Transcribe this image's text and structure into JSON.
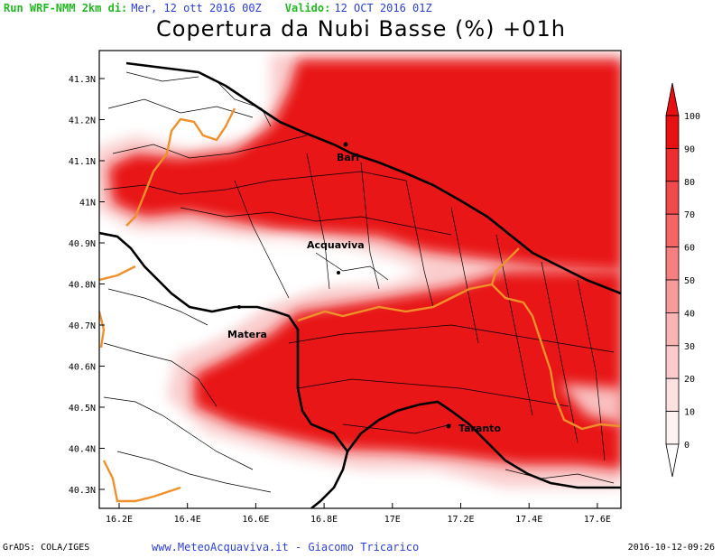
{
  "header": {
    "run_label": "Run WRF-NMM 2km di:",
    "run_value": "Mer, 12 ott 2016 00Z",
    "valid_label": "Valido:",
    "valid_value": "12 OCT 2016 01Z"
  },
  "title": "Copertura da Nubi Basse (%) +01h",
  "axes": {
    "lat_labels": [
      "41.3N",
      "41.2N",
      "41.1N",
      "41N",
      "40.9N",
      "40.8N",
      "40.7N",
      "40.6N",
      "40.5N",
      "40.4N",
      "40.3N"
    ],
    "lon_labels": [
      "16.2E",
      "16.4E",
      "16.6E",
      "16.8E",
      "17E",
      "17.2E",
      "17.4E",
      "17.6E"
    ]
  },
  "cities": [
    {
      "name": "Bari"
    },
    {
      "name": "Acquaviva"
    },
    {
      "name": "Matera"
    },
    {
      "name": "Taranto"
    }
  ],
  "colorbar": {
    "labels": [
      "100",
      "90",
      "80",
      "70",
      "60",
      "50",
      "40",
      "30",
      "20",
      "10",
      "0"
    ],
    "colors": [
      "#e81010",
      "#ee2e2e",
      "#f14a4a",
      "#f46565",
      "#f68080",
      "#f89b9b",
      "#fab4b4",
      "#fccccc",
      "#fde0e0",
      "#fef2f2"
    ]
  },
  "footer": {
    "left": "GrADS: COLA/IGES",
    "center": "www.MeteoAcquaviva.it - Giacomo Tricarico",
    "right": "2016-10-12-09:26"
  }
}
